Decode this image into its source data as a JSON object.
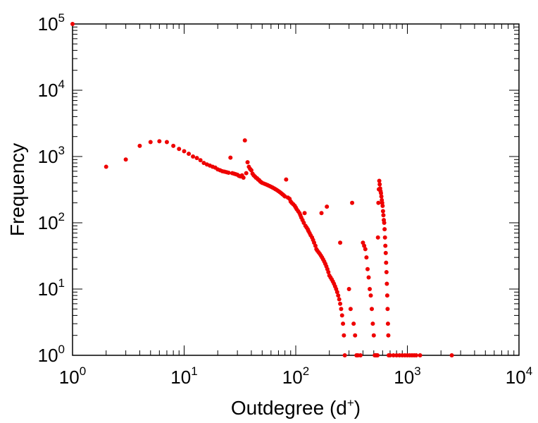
{
  "chart_data": {
    "type": "scatter",
    "xlabel": {
      "prefix": "Outdegree (d",
      "sup": "+",
      "suffix": ")"
    },
    "ylabel": "Frequency",
    "x_scale": "log",
    "y_scale": "log",
    "xlim": [
      1,
      10000
    ],
    "ylim": [
      1,
      100000
    ],
    "grid": false,
    "marker_color": "#ee0000",
    "x_ticks": [
      {
        "base": "10",
        "exp": "0"
      },
      {
        "base": "10",
        "exp": "1"
      },
      {
        "base": "10",
        "exp": "2"
      },
      {
        "base": "10",
        "exp": "3"
      },
      {
        "base": "10",
        "exp": "4"
      }
    ],
    "y_ticks": [
      {
        "base": "10",
        "exp": "0"
      },
      {
        "base": "10",
        "exp": "1"
      },
      {
        "base": "10",
        "exp": "2"
      },
      {
        "base": "10",
        "exp": "3"
      },
      {
        "base": "10",
        "exp": "4"
      },
      {
        "base": "10",
        "exp": "5"
      }
    ],
    "points": [
      [
        1,
        100000
      ],
      [
        2,
        700
      ],
      [
        3,
        900
      ],
      [
        4,
        1450
      ],
      [
        5,
        1650
      ],
      [
        6,
        1700
      ],
      [
        7,
        1650
      ],
      [
        8,
        1450
      ],
      [
        9,
        1300
      ],
      [
        10,
        1200
      ],
      [
        11,
        1100
      ],
      [
        12,
        1000
      ],
      [
        13,
        950
      ],
      [
        14,
        880
      ],
      [
        15,
        800
      ],
      [
        16,
        760
      ],
      [
        17,
        730
      ],
      [
        18,
        700
      ],
      [
        19,
        680
      ],
      [
        20,
        640
      ],
      [
        21,
        620
      ],
      [
        22,
        600
      ],
      [
        23,
        590
      ],
      [
        24,
        580
      ],
      [
        25,
        570
      ],
      [
        26,
        960
      ],
      [
        27,
        560
      ],
      [
        28,
        550
      ],
      [
        29,
        540
      ],
      [
        30,
        530
      ],
      [
        31,
        510
      ],
      [
        32,
        500
      ],
      [
        33,
        520
      ],
      [
        34,
        480
      ],
      [
        35,
        1750
      ],
      [
        36,
        560
      ],
      [
        37,
        820
      ],
      [
        38,
        700
      ],
      [
        39,
        650
      ],
      [
        40,
        620
      ],
      [
        41,
        550
      ],
      [
        42,
        520
      ],
      [
        43,
        500
      ],
      [
        44,
        480
      ],
      [
        45,
        470
      ],
      [
        46,
        450
      ],
      [
        47,
        440
      ],
      [
        48,
        420
      ],
      [
        49,
        410
      ],
      [
        50,
        400
      ],
      [
        52,
        390
      ],
      [
        54,
        380
      ],
      [
        56,
        370
      ],
      [
        58,
        360
      ],
      [
        60,
        350
      ],
      [
        62,
        340
      ],
      [
        64,
        330
      ],
      [
        66,
        320
      ],
      [
        68,
        310
      ],
      [
        70,
        300
      ],
      [
        72,
        290
      ],
      [
        74,
        280
      ],
      [
        76,
        270
      ],
      [
        78,
        260
      ],
      [
        80,
        250
      ],
      [
        82,
        450
      ],
      [
        85,
        240
      ],
      [
        88,
        230
      ],
      [
        90,
        210
      ],
      [
        92,
        200
      ],
      [
        95,
        190
      ],
      [
        98,
        180
      ],
      [
        100,
        170
      ],
      [
        102,
        160
      ],
      [
        105,
        150
      ],
      [
        108,
        140
      ],
      [
        110,
        130
      ],
      [
        112,
        120
      ],
      [
        115,
        110
      ],
      [
        118,
        100
      ],
      [
        120,
        140
      ],
      [
        122,
        90
      ],
      [
        125,
        85
      ],
      [
        128,
        80
      ],
      [
        130,
        75
      ],
      [
        133,
        70
      ],
      [
        136,
        65
      ],
      [
        140,
        60
      ],
      [
        143,
        55
      ],
      [
        146,
        50
      ],
      [
        150,
        45
      ],
      [
        153,
        40
      ],
      [
        156,
        38
      ],
      [
        160,
        36
      ],
      [
        164,
        34
      ],
      [
        168,
        32
      ],
      [
        172,
        30
      ],
      [
        176,
        28
      ],
      [
        180,
        26
      ],
      [
        184,
        24
      ],
      [
        188,
        22
      ],
      [
        192,
        20
      ],
      [
        196,
        18
      ],
      [
        200,
        16
      ],
      [
        205,
        15
      ],
      [
        210,
        14
      ],
      [
        215,
        13
      ],
      [
        220,
        12
      ],
      [
        225,
        11
      ],
      [
        230,
        10
      ],
      [
        235,
        9
      ],
      [
        240,
        8
      ],
      [
        245,
        7
      ],
      [
        250,
        6
      ],
      [
        255,
        5
      ],
      [
        260,
        4
      ],
      [
        265,
        3
      ],
      [
        270,
        2
      ],
      [
        275,
        1
      ],
      [
        170,
        140
      ],
      [
        190,
        175
      ],
      [
        250,
        50
      ],
      [
        320,
        200
      ],
      [
        300,
        10
      ],
      [
        310,
        5
      ],
      [
        330,
        3
      ],
      [
        340,
        2
      ],
      [
        350,
        1
      ],
      [
        360,
        1
      ],
      [
        380,
        1
      ],
      [
        400,
        50
      ],
      [
        410,
        45
      ],
      [
        420,
        40
      ],
      [
        430,
        30
      ],
      [
        440,
        20
      ],
      [
        450,
        15
      ],
      [
        460,
        10
      ],
      [
        470,
        8
      ],
      [
        480,
        5
      ],
      [
        490,
        3
      ],
      [
        500,
        2
      ],
      [
        510,
        1
      ],
      [
        520,
        1
      ],
      [
        530,
        1
      ],
      [
        540,
        1
      ],
      [
        545,
        60
      ],
      [
        550,
        200
      ],
      [
        555,
        320
      ],
      [
        560,
        430
      ],
      [
        565,
        380
      ],
      [
        570,
        330
      ],
      [
        575,
        300
      ],
      [
        580,
        280
      ],
      [
        585,
        250
      ],
      [
        590,
        220
      ],
      [
        595,
        200
      ],
      [
        600,
        180
      ],
      [
        605,
        150
      ],
      [
        610,
        130
      ],
      [
        615,
        110
      ],
      [
        620,
        100
      ],
      [
        625,
        80
      ],
      [
        630,
        60
      ],
      [
        635,
        45
      ],
      [
        640,
        35
      ],
      [
        645,
        25
      ],
      [
        650,
        18
      ],
      [
        655,
        12
      ],
      [
        660,
        8
      ],
      [
        665,
        5
      ],
      [
        670,
        3
      ],
      [
        675,
        2
      ],
      [
        680,
        1
      ],
      [
        700,
        1
      ],
      [
        750,
        1
      ],
      [
        800,
        1
      ],
      [
        850,
        1
      ],
      [
        900,
        1
      ],
      [
        950,
        1
      ],
      [
        1000,
        1
      ],
      [
        1050,
        1
      ],
      [
        1100,
        1
      ],
      [
        1150,
        1
      ],
      [
        1200,
        1
      ],
      [
        1300,
        1
      ],
      [
        2500,
        1
      ]
    ]
  }
}
